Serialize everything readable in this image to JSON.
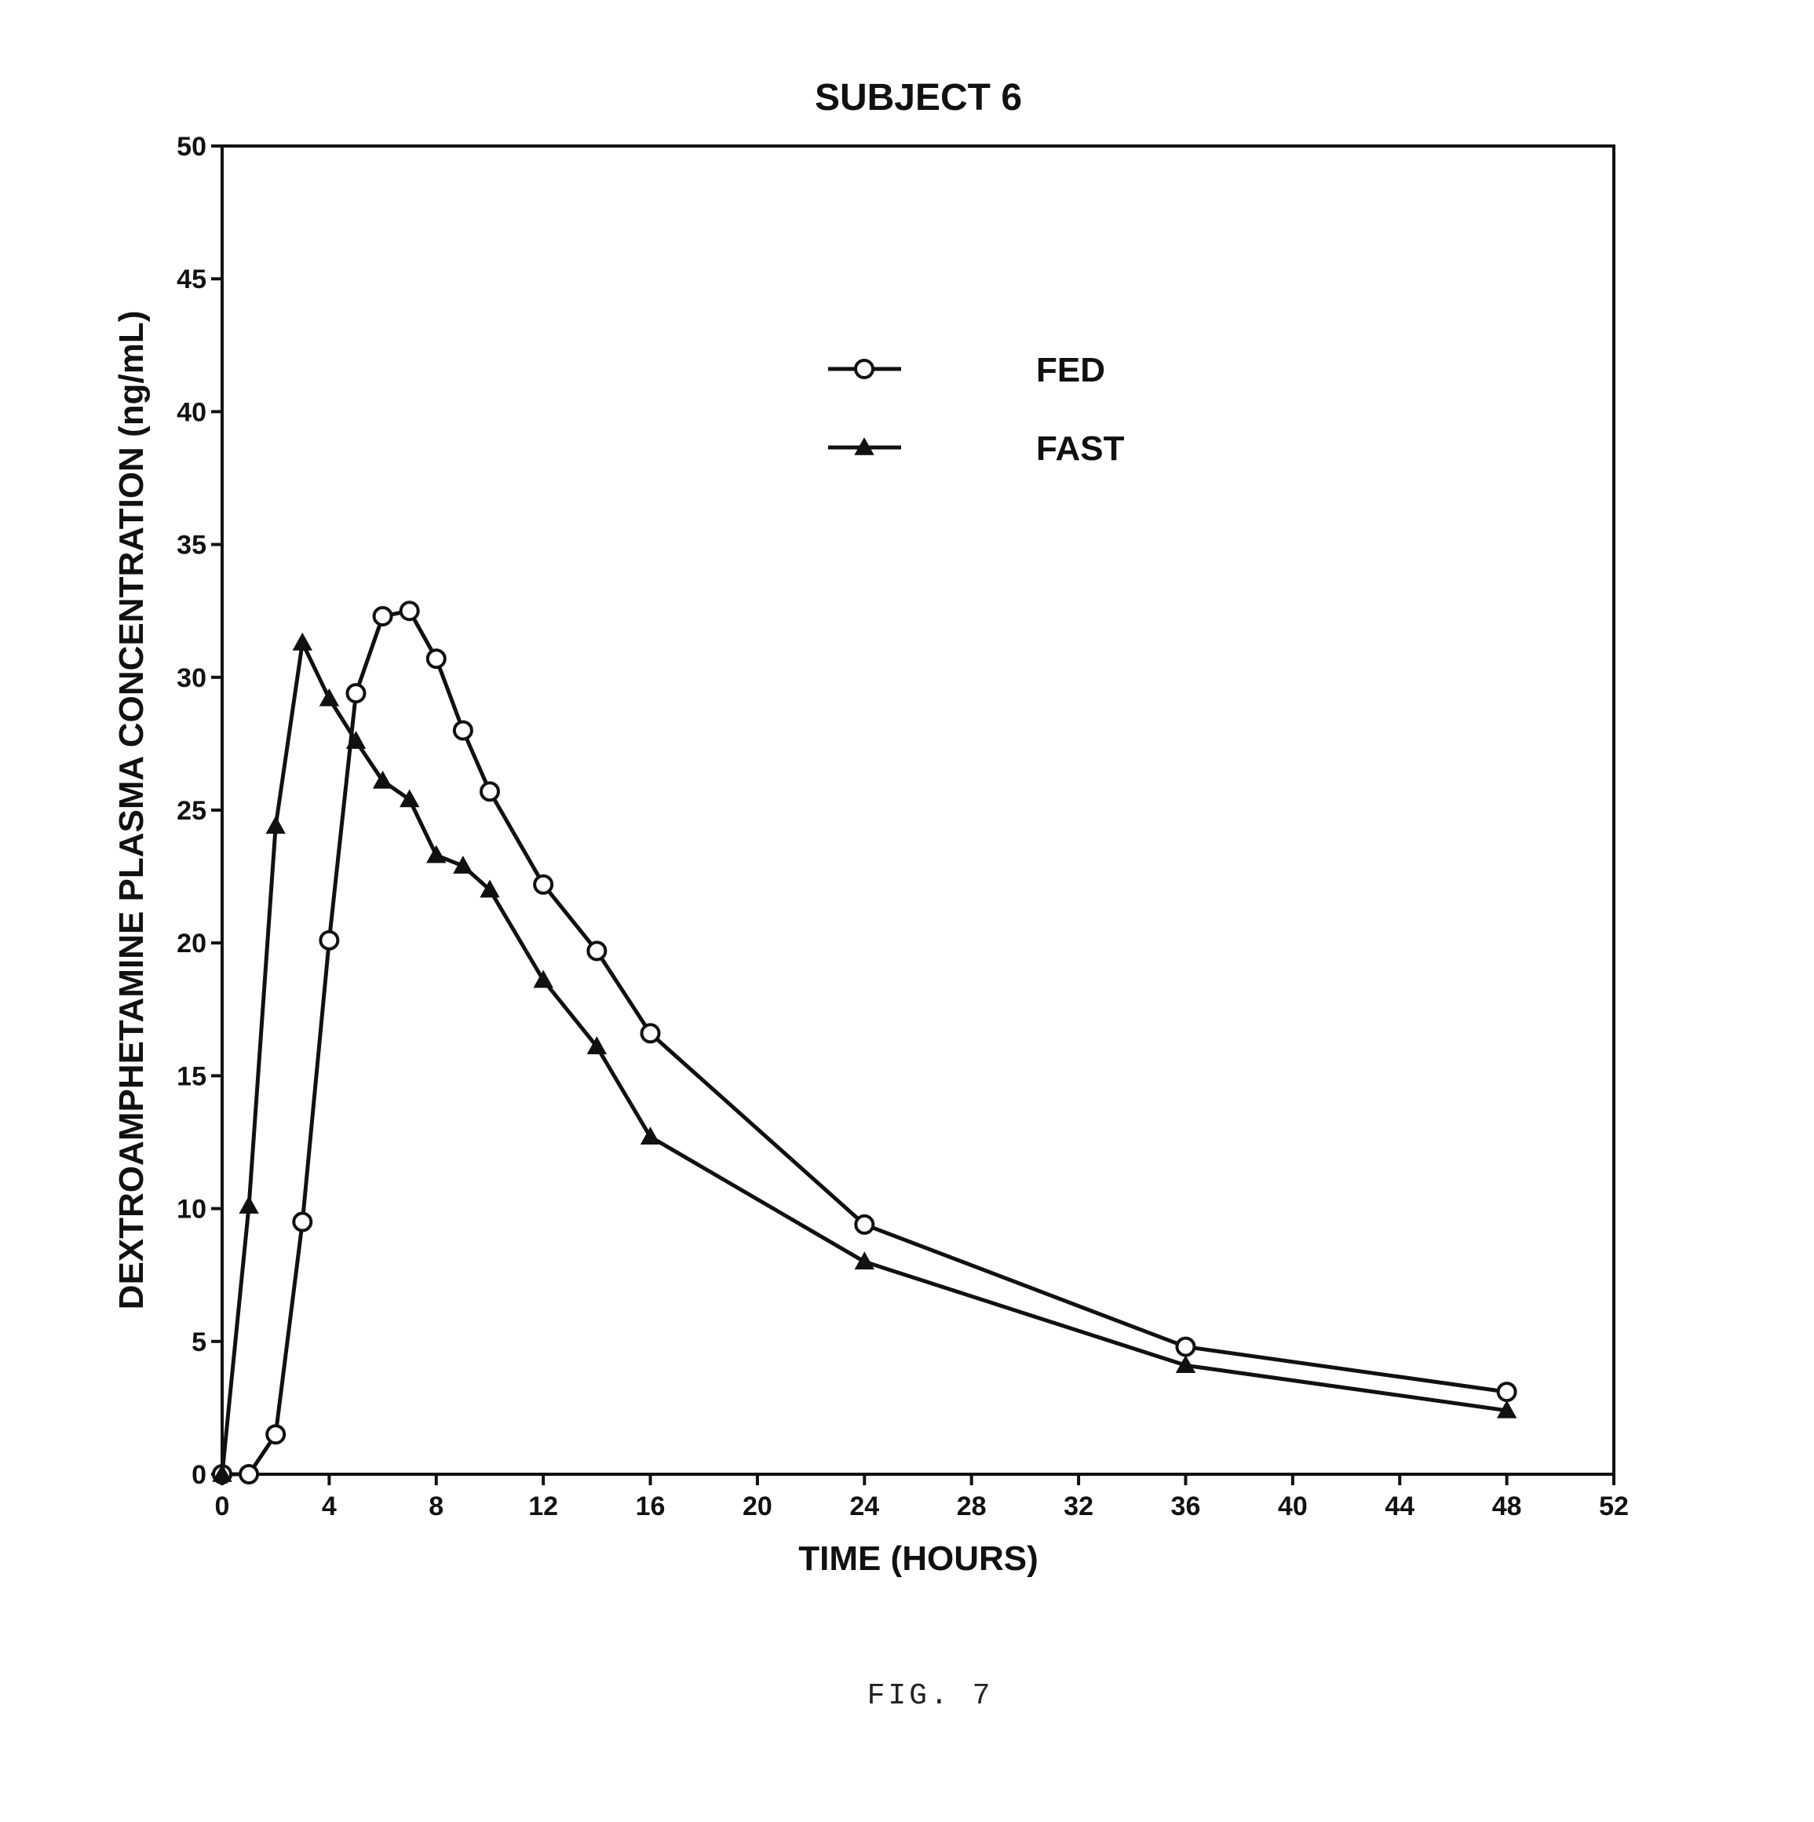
{
  "chart_data": {
    "type": "line",
    "title": "SUBJECT 6",
    "xlabel": "TIME (HOURS)",
    "ylabel": "DEXTROAMPHETAMINE PLASMA CONCENTRATION (ng/mL)",
    "xlim": [
      0,
      52
    ],
    "ylim": [
      0,
      50
    ],
    "xticks": [
      "0",
      "4",
      "8",
      "12",
      "16",
      "20",
      "24",
      "28",
      "32",
      "36",
      "40",
      "44",
      "48",
      "52"
    ],
    "yticks": [
      "0",
      "5",
      "10",
      "15",
      "20",
      "25",
      "30",
      "35",
      "40",
      "45",
      "50"
    ],
    "legend": "upper-center",
    "grid": false,
    "series": [
      {
        "name": "FED",
        "marker": "open-circle",
        "x": [
          0,
          1,
          2,
          3,
          4,
          5,
          6,
          7,
          8,
          9,
          10,
          12,
          14,
          16,
          24,
          36,
          48
        ],
        "y": [
          0,
          0,
          1.5,
          9.5,
          20.1,
          29.4,
          32.3,
          32.5,
          30.7,
          28.0,
          25.7,
          22.2,
          19.7,
          16.6,
          9.4,
          4.8,
          3.1
        ]
      },
      {
        "name": "FAST",
        "marker": "filled-triangle",
        "x": [
          0,
          1,
          2,
          3,
          4,
          5,
          6,
          7,
          8,
          9,
          10,
          12,
          14,
          16,
          24,
          36,
          48
        ],
        "y": [
          0,
          10.1,
          24.4,
          31.3,
          29.2,
          27.6,
          26.1,
          25.4,
          23.3,
          22.9,
          22.0,
          18.6,
          16.1,
          12.7,
          8.0,
          4.1,
          2.4
        ]
      }
    ]
  },
  "caption": "FIG. 7"
}
